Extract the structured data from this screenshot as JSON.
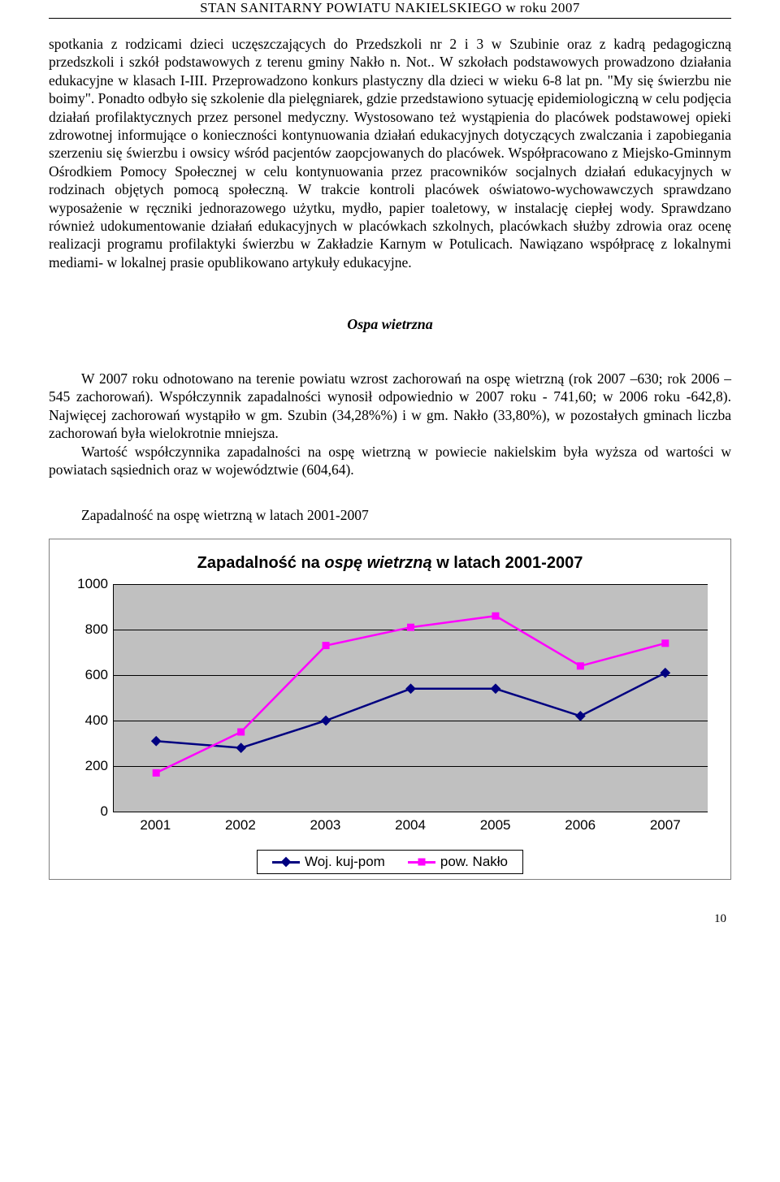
{
  "header": "STAN   SANITARNY   POWIATU   NAKIELSKIEGO  w roku 2007",
  "para1": "spotkania z rodzicami dzieci uczęszczających do Przedszkoli nr 2 i 3 w Szubinie oraz z kadrą pedagogiczną przedszkoli i szkół podstawowych z terenu gminy Nakło n. Not.. W szkołach podstawowych prowadzono działania edukacyjne w klasach I-III. Przeprowadzono konkurs plastyczny dla dzieci w wieku 6-8 lat pn. \"My się świerzbu nie boimy\". Ponadto odbyło się szkolenie dla pielęgniarek, gdzie przedstawiono sytuację epidemiologiczną w celu podjęcia działań profilaktycznych przez personel medyczny. Wystosowano też wystąpienia do placówek podstawowej opieki zdrowotnej informujące o konieczności kontynuowania działań edukacyjnych dotyczących zwalczania i zapobiegania szerzeniu się świerzbu i owsicy wśród pacjentów zaopcjowanych do placówek. Współpracowano z Miejsko-Gminnym Ośrodkiem Pomocy Społecznej w celu kontynuowania przez pracowników socjalnych działań edukacyjnych w rodzinach objętych pomocą społeczną. W trakcie kontroli placówek oświatowo-wychowawczych sprawdzano wyposażenie w ręczniki jednorazowego użytku, mydło, papier toaletowy, w instalację ciepłej wody. Sprawdzano również udokumentowanie działań edukacyjnych w placówkach szkolnych, placówkach służby zdrowia oraz ocenę realizacji programu profilaktyki świerzbu w Zakładzie Karnym w Potulicach. Nawiązano współpracę z lokalnymi mediami- w lokalnej prasie opublikowano artykuły edukacyjne.",
  "subtitle": "Ospa wietrzna",
  "para2": "W 2007 roku odnotowano na terenie powiatu wzrost zachorowań na ospę wietrzną         (rok 2007 –630; rok 2006 – 545  zachorowań). Współczynnik zapadalności wynosił odpowiednio w 2007 roku - 741,60; w 2006 roku -642,8). Najwięcej zachorowań wystąpiło w gm. Szubin (34,28%%) i w gm. Nakło (33,80%), w pozostałych gminach liczba zachorowań była wielokrotnie mniejsza.",
  "para3": "Wartość współczynnika zapadalności na ospę wietrzną w powiecie nakielskim była wyższa od wartości w powiatach sąsiednich oraz  w województwie (604,64).",
  "caption": "Zapadalność na ospę wietrzną w latach 2001-2007",
  "chart": {
    "type": "line",
    "title_prefix": "Zapadalność na ",
    "title_italic": "ospę wietrzną",
    "title_suffix": " w latach 2001-2007",
    "title_fontsize": 20,
    "background_color": "#c0c0c0",
    "grid_color": "#000000",
    "categories": [
      "2001",
      "2002",
      "2003",
      "2004",
      "2005",
      "2006",
      "2007"
    ],
    "ylim": [
      0,
      1000
    ],
    "ytick_step": 200,
    "yticks": [
      "0",
      "200",
      "400",
      "600",
      "800",
      "1000"
    ],
    "series": [
      {
        "name": "Woj. kuj-pom",
        "color": "#000080",
        "marker": "diamond",
        "values": [
          310,
          280,
          400,
          540,
          540,
          420,
          610
        ]
      },
      {
        "name": "pow. Nakło",
        "color": "#ff00ff",
        "marker": "square",
        "values": [
          170,
          350,
          730,
          810,
          860,
          640,
          740
        ]
      }
    ],
    "line_width": 2.5,
    "marker_size": 9,
    "label_fontsize": 17,
    "font_family": "Arial"
  },
  "page_number": "10"
}
